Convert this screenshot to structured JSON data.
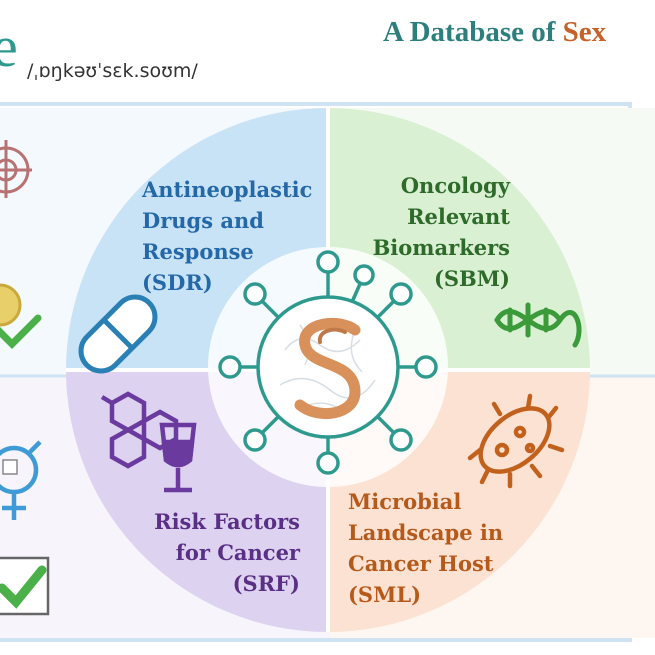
{
  "header": {
    "logo_letter": "e",
    "phonetic": "/ˌɒŋkəʊˈsɛk.soʊm/",
    "title_main": "A Database of ",
    "title_highlight": "Sex"
  },
  "quadrants": [
    {
      "id": "SDR",
      "lines": [
        "Antineoplastic",
        "Drugs and",
        "Response",
        "(SDR)"
      ],
      "color": "#2468a8"
    },
    {
      "id": "SBM",
      "lines": [
        "Oncology",
        "Relevant",
        "Biomarkers",
        "(SBM)"
      ],
      "color": "#2e6a2a"
    },
    {
      "id": "SRF",
      "lines": [
        "Risk Factors",
        "for Cancer",
        "(SRF)"
      ],
      "color": "#5a2f86"
    },
    {
      "id": "SML",
      "lines": [
        "Microbial",
        "Landscape in",
        "Cancer Host",
        "(SML)"
      ],
      "color": "#b65a1c"
    }
  ],
  "colors": {
    "teal": "#2e9a8e",
    "blue_quadrant": "#c9e3f6",
    "green_quadrant": "#d9f0d3",
    "purple_quadrant": "#ddd3f0",
    "peach_quadrant": "#fbe2d2",
    "capsule": "#2a7fb5",
    "dna": "#3b9a3a",
    "molecule": "#6a3a9e",
    "bacteria": "#c2611e",
    "check": "#4cb04a",
    "gender": "#3f9bd6"
  },
  "icons": [
    "target-icon",
    "coin-check-icon",
    "gender-icon",
    "checkbox-icon",
    "capsule-icon",
    "dna-icon",
    "molecule-icon",
    "wine-glass-icon",
    "bacteria-icon",
    "virus-logo-icon"
  ]
}
